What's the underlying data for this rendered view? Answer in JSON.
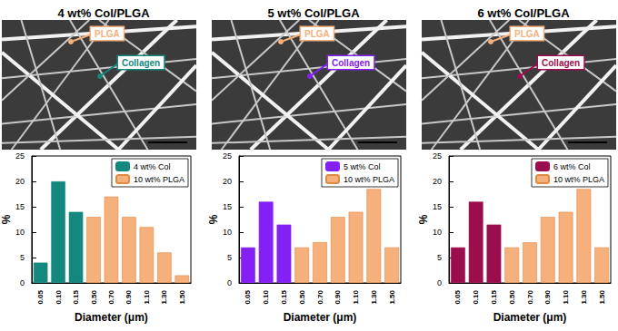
{
  "chart_data": [
    {
      "type": "bar",
      "title": "4 wt% Col/PLGA",
      "annotations": [
        "PLGA",
        "Collagen"
      ],
      "categories": [
        "0.05",
        "0.10",
        "0.15",
        "0.50",
        "0.70",
        "0.90",
        "1.10",
        "1.30",
        "1.50"
      ],
      "series": [
        {
          "name": "4 wt% Col",
          "color": "#14887e",
          "values": [
            4,
            20,
            14,
            null,
            null,
            null,
            null,
            null,
            null
          ]
        },
        {
          "name": "10 wt% PLGA",
          "color": "#f5b07c",
          "values": [
            null,
            null,
            null,
            13,
            17,
            13,
            11,
            6,
            1.5
          ]
        }
      ],
      "xlabel": "Diameter (μm)",
      "ylabel": "%",
      "ylim": [
        0,
        25
      ],
      "yticks": [
        0,
        5,
        10,
        15,
        20,
        25
      ],
      "legend": "upper right",
      "grid": false
    },
    {
      "type": "bar",
      "title": "5 wt% Col/PLGA",
      "annotations": [
        "PLGA",
        "Collagen"
      ],
      "categories": [
        "0.05",
        "0.10",
        "0.15",
        "0.50",
        "0.70",
        "0.90",
        "1.10",
        "1.30",
        "1.50"
      ],
      "series": [
        {
          "name": "5 wt% Col",
          "color": "#8420f5",
          "values": [
            7,
            16,
            11.5,
            null,
            null,
            null,
            null,
            null,
            null
          ]
        },
        {
          "name": "10 wt% PLGA",
          "color": "#f5b07c",
          "values": [
            null,
            null,
            null,
            7,
            8,
            13,
            14,
            18.5,
            7
          ]
        }
      ],
      "xlabel": "Diameter (μm)",
      "ylabel": "%",
      "ylim": [
        0,
        25
      ],
      "yticks": [
        0,
        5,
        10,
        15,
        20,
        25
      ],
      "legend": "upper right",
      "grid": false
    },
    {
      "type": "bar",
      "title": "6 wt% Col/PLGA",
      "annotations": [
        "PLGA",
        "Collagen"
      ],
      "categories": [
        "0.05",
        "0.10",
        "0.15",
        "0.50",
        "0.70",
        "0.90",
        "1.10",
        "1.30",
        "1.50"
      ],
      "series": [
        {
          "name": "6 wt% Col",
          "color": "#9c0d4e",
          "values": [
            7,
            16,
            11.5,
            null,
            null,
            null,
            null,
            null,
            null
          ]
        },
        {
          "name": "10 wt% PLGA",
          "color": "#f5b07c",
          "values": [
            null,
            null,
            null,
            7,
            8,
            13,
            14,
            18.5,
            7
          ]
        }
      ],
      "xlabel": "Diameter (μm)",
      "ylabel": "%",
      "ylim": [
        0,
        25
      ],
      "yticks": [
        0,
        5,
        10,
        15,
        20,
        25
      ],
      "legend": "upper right",
      "grid": false
    }
  ]
}
